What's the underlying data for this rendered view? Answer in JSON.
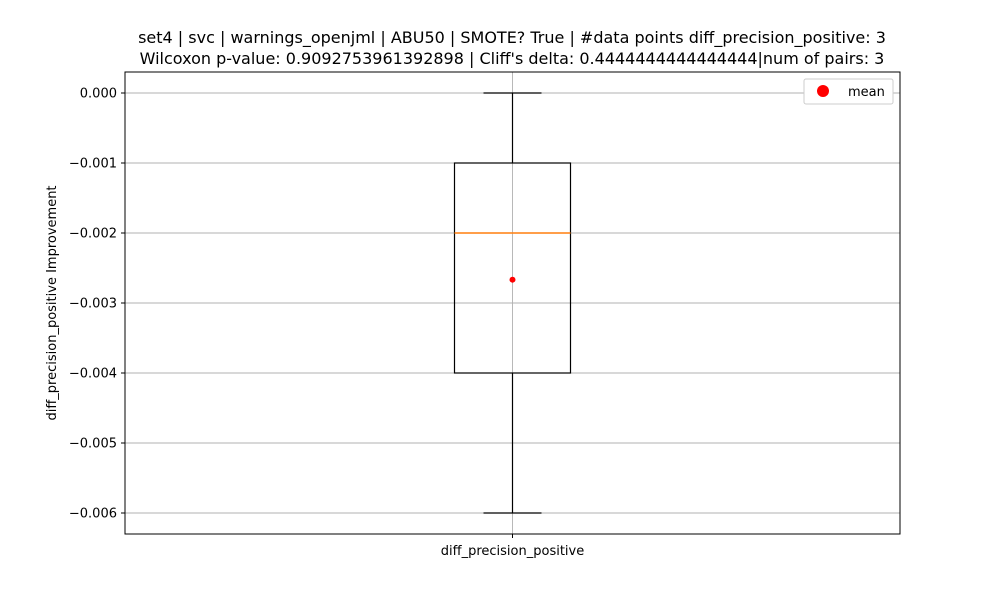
{
  "chart_data": {
    "type": "box",
    "title_line1": "set4 | svc | warnings_openjml | ABU50 | SMOTE? True | #data points diff_precision_positive: 3",
    "title_line2": "Wilcoxon p-value: 0.9092753961392898 | Cliff's delta: 0.4444444444444444|num of pairs: 3",
    "xlabel": "",
    "ylabel": "diff_precision_positive Improvement",
    "categories": [
      "diff_precision_positive"
    ],
    "ylim": [
      -0.0063,
      0.0003
    ],
    "yticks": [
      0.0,
      -0.001,
      -0.002,
      -0.003,
      -0.004,
      -0.005,
      -0.006
    ],
    "ytick_labels": [
      "0.000",
      "−0.001",
      "−0.002",
      "−0.003",
      "−0.004",
      "−0.005",
      "−0.006"
    ],
    "grid": true,
    "legend_position": "top-right",
    "legend": [
      {
        "label": "mean",
        "color": "#ff0000",
        "marker": "circle"
      }
    ],
    "boxes": [
      {
        "category": "diff_precision_positive",
        "whisker_low": -0.006,
        "q1": -0.004,
        "median": -0.002,
        "q3": -0.001,
        "whisker_high": 0.0,
        "mean": -0.002667
      }
    ],
    "colors": {
      "box": "#000000",
      "median": "#ff7f0e",
      "mean": "#ff0000",
      "grid": "#b0b0b0"
    }
  }
}
